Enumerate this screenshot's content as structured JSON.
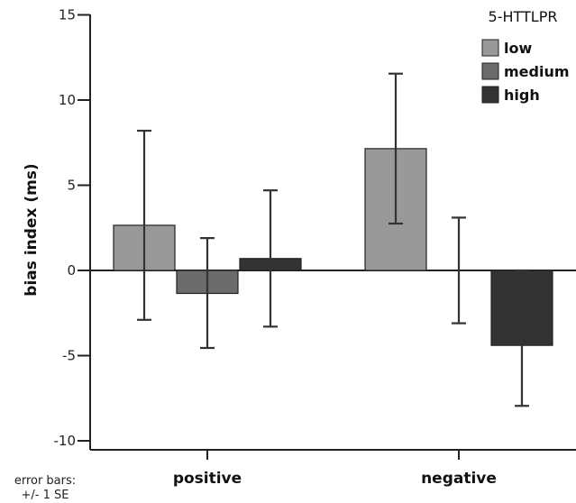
{
  "chart_data": {
    "type": "bar",
    "categories": [
      "positive",
      "negative"
    ],
    "ylabel": "bias index (ms)",
    "ylim": [
      -10,
      15
    ],
    "yticks": [
      15,
      10,
      5,
      0,
      -5,
      -10
    ],
    "ytick_labels": [
      "15",
      "10",
      "5",
      "0",
      "-5",
      "-10"
    ],
    "legend_title": "5-HTTLPR",
    "legend_position": "top-right",
    "note_lines": [
      "error bars:",
      "+/- 1 SE"
    ],
    "series": [
      {
        "name": "low",
        "color": "#999999",
        "values": [
          2.65,
          7.15
        ],
        "err_low": [
          -2.9,
          2.75
        ],
        "err_high": [
          8.2,
          11.55
        ]
      },
      {
        "name": "medium",
        "color": "#6b6b6b",
        "values": [
          -1.35,
          0.0
        ],
        "err_low": [
          -4.55,
          -3.1
        ],
        "err_high": [
          1.9,
          3.1
        ]
      },
      {
        "name": "high",
        "color": "#333333",
        "values": [
          0.7,
          -4.4
        ],
        "err_low": [
          -3.3,
          -7.95
        ],
        "err_high": [
          4.7,
          0.0
        ]
      }
    ],
    "grid": false
  }
}
